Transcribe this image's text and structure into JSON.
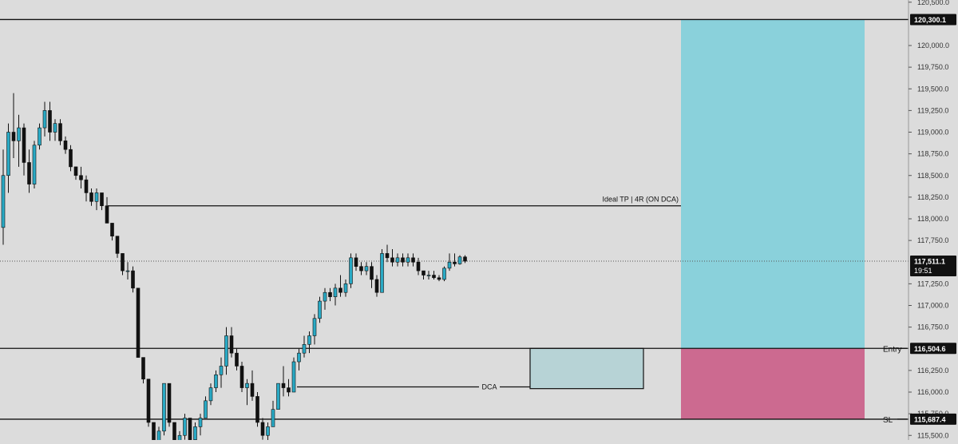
{
  "chart_data": {
    "type": "candlestick",
    "symbol": "",
    "ylim": [
      115400,
      120550
    ],
    "price_axis": {
      "ticks": [
        "120,500.0",
        "120,000.0",
        "119,750.0",
        "119,500.0",
        "119,250.0",
        "119,000.0",
        "118,750.0",
        "118,500.0",
        "118,250.0",
        "118,000.0",
        "117,750.0",
        "117,250.0",
        "117,000.0",
        "116,750.0",
        "116,250.0",
        "116,000.0",
        "115,750.0",
        "115,500.0"
      ],
      "tick_values": [
        120500,
        120000,
        119750,
        119500,
        119250,
        119000,
        118750,
        118500,
        118250,
        118000,
        117750,
        117250,
        117000,
        116750,
        116250,
        116000,
        115750,
        115500
      ]
    },
    "levels": [
      {
        "value": 120300.1,
        "label": "120,300.1",
        "name": ""
      },
      {
        "value": 116504.6,
        "label": "116,504.6",
        "name": "Entry"
      },
      {
        "value": 115687.4,
        "label": "115,687.4",
        "name": "SL"
      }
    ],
    "current_price": {
      "value": 117511.1,
      "label": "117,511.1",
      "countdown": "19:51"
    },
    "annotations": {
      "tp_label": "Ideal TP  |  4R (ON DCA)",
      "tp_price": 118150,
      "dca_label": "DCA",
      "dca_price": 116060,
      "dca_zone": {
        "top": 116504.6,
        "bottom": 116040
      }
    },
    "position": {
      "target": 120300.1,
      "entry": 116504.6,
      "stop": 115687.4
    },
    "colors": {
      "background": "#dcdcdc",
      "up": "#29a9c4",
      "down": "#111111",
      "target_zone": "#8ad1db",
      "stop_zone": "#cc6a90",
      "dca_zone": "#b7d3d6",
      "axis_text": "#333333",
      "label_bg": "#111111",
      "label_text": "#ffffff"
    },
    "candles": [
      [
        117900,
        118800,
        117700,
        118500
      ],
      [
        118500,
        119100,
        118300,
        119000
      ],
      [
        119000,
        119450,
        118700,
        118900
      ],
      [
        118900,
        119200,
        118600,
        119050
      ],
      [
        119050,
        119100,
        118500,
        118650
      ],
      [
        118650,
        118800,
        118300,
        118400
      ],
      [
        118400,
        118900,
        118350,
        118850
      ],
      [
        118850,
        119100,
        118800,
        119050
      ],
      [
        119050,
        119350,
        118950,
        119250
      ],
      [
        119250,
        119350,
        118900,
        119000
      ],
      [
        119000,
        119150,
        118900,
        119100
      ],
      [
        119100,
        119150,
        118850,
        118900
      ],
      [
        118900,
        118950,
        118750,
        118800
      ],
      [
        118800,
        118850,
        118550,
        118600
      ],
      [
        118600,
        118600,
        118450,
        118500
      ],
      [
        118500,
        118600,
        118350,
        118450
      ],
      [
        118450,
        118500,
        118200,
        118300
      ],
      [
        118300,
        118350,
        118150,
        118200
      ],
      [
        118200,
        118350,
        118100,
        118300
      ],
      [
        118300,
        118300,
        118100,
        118150
      ],
      [
        118150,
        118250,
        117950,
        117950
      ],
      [
        117950,
        117950,
        117750,
        117800
      ],
      [
        117800,
        117800,
        117550,
        117600
      ],
      [
        117600,
        117600,
        117350,
        117400
      ],
      [
        117400,
        117500,
        117300,
        117400
      ],
      [
        117400,
        117450,
        117150,
        117200
      ],
      [
        117200,
        117200,
        116400,
        116400
      ],
      [
        116400,
        116400,
        116100,
        116150
      ],
      [
        116150,
        116150,
        115600,
        115650
      ],
      [
        115650,
        115650,
        115350,
        115400
      ],
      [
        115400,
        115600,
        115300,
        115550
      ],
      [
        115550,
        116100,
        115500,
        116100
      ],
      [
        116100,
        116100,
        115600,
        115650
      ],
      [
        115650,
        115650,
        115300,
        115400
      ],
      [
        115400,
        115550,
        115300,
        115500
      ],
      [
        115500,
        115750,
        115450,
        115700
      ],
      [
        115700,
        115700,
        115350,
        115450
      ],
      [
        115450,
        115650,
        115400,
        115600
      ],
      [
        115600,
        115750,
        115500,
        115700
      ],
      [
        115700,
        115950,
        115700,
        115900
      ],
      [
        115900,
        116100,
        115850,
        116050
      ],
      [
        116050,
        116250,
        116000,
        116200
      ],
      [
        116200,
        116400,
        116050,
        116300
      ],
      [
        116300,
        116750,
        116200,
        116650
      ],
      [
        116650,
        116750,
        116400,
        116450
      ],
      [
        116450,
        116500,
        116250,
        116300
      ],
      [
        116300,
        116350,
        116000,
        116050
      ],
      [
        116050,
        116150,
        115850,
        116100
      ],
      [
        116100,
        116250,
        115900,
        115950
      ],
      [
        115950,
        116000,
        115600,
        115650
      ],
      [
        115650,
        115700,
        115450,
        115500
      ],
      [
        115500,
        115650,
        115400,
        115600
      ],
      [
        115600,
        115900,
        115600,
        115800
      ],
      [
        115800,
        116100,
        115800,
        116100
      ],
      [
        116100,
        116300,
        115950,
        116050
      ],
      [
        116050,
        116150,
        115950,
        116000
      ],
      [
        116000,
        116400,
        116000,
        116350
      ],
      [
        116350,
        116500,
        116250,
        116450
      ],
      [
        116450,
        116650,
        116400,
        116550
      ],
      [
        116550,
        116700,
        116450,
        116650
      ],
      [
        116650,
        116900,
        116550,
        116850
      ],
      [
        116850,
        117100,
        116800,
        117050
      ],
      [
        117050,
        117200,
        116950,
        117150
      ],
      [
        117150,
        117200,
        117050,
        117100
      ],
      [
        117100,
        117250,
        117000,
        117200
      ],
      [
        117200,
        117350,
        117100,
        117150
      ],
      [
        117150,
        117300,
        117100,
        117250
      ],
      [
        117250,
        117600,
        117200,
        117550
      ],
      [
        117550,
        117600,
        117400,
        117450
      ],
      [
        117450,
        117500,
        117350,
        117400
      ],
      [
        117400,
        117500,
        117350,
        117450
      ],
      [
        117450,
        117500,
        117200,
        117300
      ],
      [
        117300,
        117350,
        117100,
        117150
      ],
      [
        117150,
        117650,
        117150,
        117600
      ],
      [
        117600,
        117700,
        117500,
        117550
      ],
      [
        117550,
        117650,
        117450,
        117500
      ],
      [
        117500,
        117600,
        117450,
        117550
      ],
      [
        117550,
        117600,
        117450,
        117500
      ],
      [
        117500,
        117600,
        117450,
        117550
      ],
      [
        117550,
        117600,
        117450,
        117500
      ],
      [
        117500,
        117550,
        117350,
        117400
      ],
      [
        117400,
        117400,
        117300,
        117350
      ],
      [
        117350,
        117400,
        117300,
        117350
      ],
      [
        117350,
        117400,
        117300,
        117320
      ],
      [
        117320,
        117350,
        117280,
        117300
      ],
      [
        117300,
        117450,
        117280,
        117430
      ],
      [
        117430,
        117600,
        117400,
        117500
      ],
      [
        117500,
        117600,
        117450,
        117480
      ],
      [
        117480,
        117580,
        117470,
        117560
      ],
      [
        117560,
        117580,
        117490,
        117511
      ]
    ]
  }
}
